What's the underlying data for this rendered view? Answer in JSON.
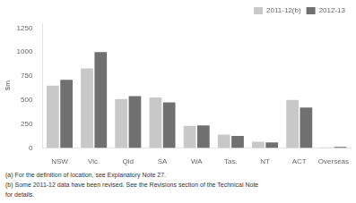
{
  "chart_data": {
    "type": "bar",
    "categories": [
      "NSW",
      "Vic.",
      "Qld",
      "SA",
      "WA",
      "Tas.",
      "NT",
      "ACT",
      "Overseas"
    ],
    "series": [
      {
        "name": "2011-12(b)",
        "color": "#c8c8c8",
        "values": [
          650,
          830,
          510,
          525,
          230,
          140,
          65,
          500,
          5
        ]
      },
      {
        "name": "2012-13",
        "color": "#707070",
        "values": [
          710,
          1000,
          540,
          475,
          235,
          125,
          58,
          420,
          10
        ]
      }
    ],
    "y_label": "$m",
    "ylim": [
      0,
      1300
    ],
    "yticks": [
      0,
      250,
      500,
      750,
      1000,
      1250
    ],
    "grid": false,
    "legend": "upper right",
    "annotations": [
      "(a) For the definition of location, see Explanatory Note 27.",
      "(b) Some 2011-12 data have been revised. See the Revisions section of the Technical Note",
      "for details."
    ]
  }
}
